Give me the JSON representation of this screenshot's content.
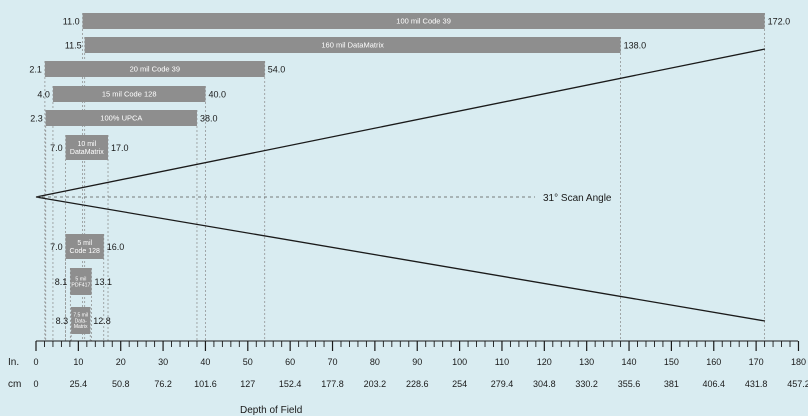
{
  "axis": {
    "inch_label": "In.",
    "cm_label": "cm",
    "title": "Depth of Field",
    "inch_ticks": [
      "0",
      "10",
      "20",
      "30",
      "40",
      "50",
      "60",
      "70",
      "80",
      "90",
      "100",
      "110",
      "120",
      "130",
      "140",
      "150",
      "160",
      "170",
      "180"
    ],
    "cm_ticks": [
      "0",
      "25.4",
      "50.8",
      "76.2",
      "101.6",
      "127",
      "152.4",
      "177.8",
      "203.2",
      "228.6",
      "254",
      "279.4",
      "304.8",
      "330.2",
      "355.6",
      "381",
      "406.4",
      "431.8",
      "457.2"
    ],
    "range": [
      0,
      180
    ]
  },
  "scan_angle": {
    "label": "31° Scan Angle"
  },
  "bars": [
    {
      "name": "100 mil Code 39",
      "lines": [
        "100 mil Code 39"
      ],
      "min": 11.0,
      "max": 172.0,
      "min_label": "11.0",
      "max_label": "172.0"
    },
    {
      "name": "160 mil DataMatrix",
      "lines": [
        "160 mil DataMatrix"
      ],
      "min": 11.5,
      "max": 138.0,
      "min_label": "11.5",
      "max_label": "138.0"
    },
    {
      "name": "20 mil Code 39",
      "lines": [
        "20 mil Code 39"
      ],
      "min": 2.1,
      "max": 54.0,
      "min_label": "2.1",
      "max_label": "54.0"
    },
    {
      "name": "15 mil Code 128",
      "lines": [
        "15 mil Code 128"
      ],
      "min": 4.0,
      "max": 40.0,
      "min_label": "4.0",
      "max_label": "40.0"
    },
    {
      "name": "100% UPCA",
      "lines": [
        "100% UPCA"
      ],
      "min": 2.3,
      "max": 38.0,
      "min_label": "2.3",
      "max_label": "38.0"
    },
    {
      "name": "10 mil DataMatrix",
      "lines": [
        "10 mil",
        "DataMatrix"
      ],
      "min": 7.0,
      "max": 17.0,
      "min_label": "7.0",
      "max_label": "17.0"
    },
    {
      "name": "5 mil Code 128",
      "lines": [
        "5 mil",
        "Code 128"
      ],
      "min": 7.0,
      "max": 16.0,
      "min_label": "7.0",
      "max_label": "16.0"
    },
    {
      "name": "5 mil PDF417",
      "lines": [
        "5 mil",
        "PDF417"
      ],
      "min": 8.1,
      "max": 13.1,
      "min_label": "8.1",
      "max_label": "13.1"
    },
    {
      "name": "7.5 mil Data-Matrix",
      "lines": [
        "7.5 mil",
        "Data-",
        "Matrix"
      ],
      "min": 8.3,
      "max": 12.8,
      "min_label": "8.3",
      "max_label": "12.8"
    }
  ],
  "colors": {
    "bar": "#8e8e8e",
    "background": "#d9ecf1",
    "text": "#1a1a1a",
    "bar_text": "#ffffff"
  }
}
